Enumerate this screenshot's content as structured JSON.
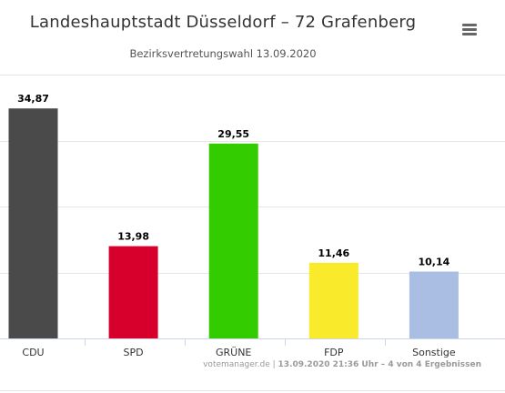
{
  "header": {
    "title": "Landeshauptstadt Düsseldorf – 72 Grafenberg",
    "subtitle": "Bezirksvertretungswahl 13.09.2020"
  },
  "menu": {
    "icon": "hamburger-menu-icon"
  },
  "credits": {
    "source": "votemanager.de",
    "separator": "|",
    "detail": "13.09.2020 21:36 Uhr – 4 von 4 Ergebnissen"
  },
  "chart_data": {
    "type": "bar",
    "title": "Landeshauptstadt Düsseldorf – 72 Grafenberg",
    "subtitle": "Bezirksvertretungswahl 13.09.2020",
    "categories": [
      "CDU",
      "SPD",
      "GRÜNE",
      "FDP",
      "Sonstige"
    ],
    "values": [
      34.87,
      13.98,
      29.55,
      11.46,
      10.14
    ],
    "labels": [
      "34,87",
      "13,98",
      "29,55",
      "11,46",
      "10,14"
    ],
    "colors": [
      "#4a4a4a",
      "#d7002c",
      "#33cc00",
      "#f9ea2b",
      "#aabde3"
    ],
    "ylim": [
      0,
      40
    ],
    "yticks": [
      0,
      10,
      20,
      30,
      40
    ],
    "grid": true,
    "legend": "none",
    "xlabel": "",
    "ylabel": ""
  }
}
